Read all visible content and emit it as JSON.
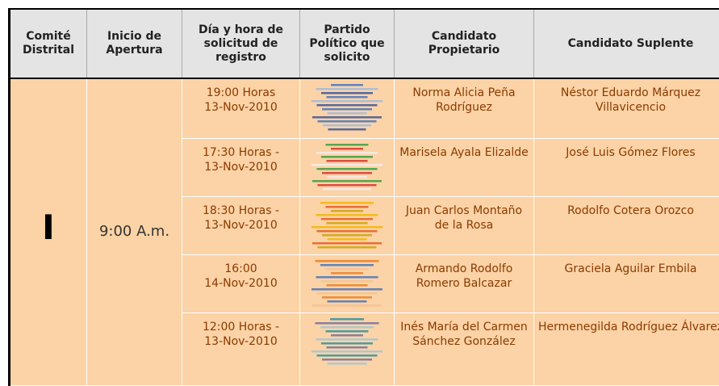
{
  "table": {
    "headers": [
      "Comité Distrital",
      "Inicio de Apertura",
      "Día y hora de solicitud de registro",
      "Partido Político que solicito",
      "Candidato Propietario",
      "Candidato Suplente"
    ],
    "committee": "I",
    "opening": "9:00 A.m.",
    "rows": [
      [
        "19:00 Horas\n13-Nov-2010",
        "Norma Alicia Peña Rodríguez",
        "Néstor Eduardo Márquez Villavicencio"
      ],
      [
        "17:30 Horas -\n13-Nov-2010",
        "Marisela Ayala Elizalde",
        "José Luis Gómez Flores"
      ],
      [
        "18:30 Horas -\n13-Nov-2010",
        "Juan Carlos Montaño de la Rosa",
        "Rodolfo Cotera Orozco"
      ],
      [
        "16:00\n14-Nov-2010",
        "Armando Rodolfo Romero Balcazar",
        "Graciela Aguilar Embila"
      ],
      [
        "12:00 Horas -\n13-Nov-2010",
        "Inés María del Carmen Sánchez González",
        "Hermenegilda Rodríguez Álvarez"
      ]
    ]
  }
}
